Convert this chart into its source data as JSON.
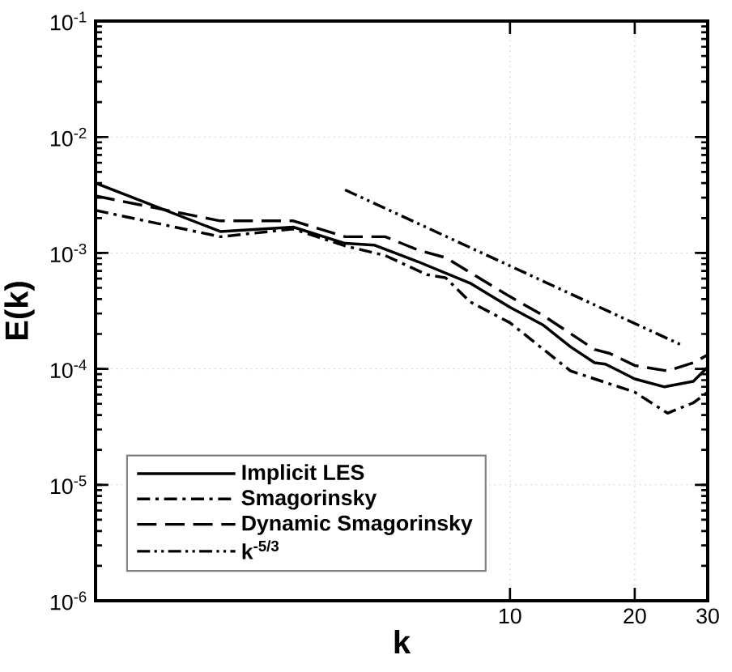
{
  "chart_data": {
    "type": "line",
    "xlabel": "k",
    "ylabel": "E(k)",
    "log": "xy",
    "grid": true,
    "legend": "bottom left",
    "xlim": [
      1,
      30
    ],
    "ylim": [
      1e-06,
      0.1
    ],
    "xticks": [
      10,
      20,
      30
    ],
    "yticks": [
      {
        "value": 1e-06,
        "label": "10$^{-6}$"
      },
      {
        "value": 1e-05,
        "label": "10$^{-5}$"
      },
      {
        "value": 0.0001,
        "label": "10$^{-4}$"
      },
      {
        "value": 0.001,
        "label": "10$^{-3}$"
      },
      {
        "value": 0.01,
        "label": "10$^{-2}$"
      },
      {
        "value": 0.1,
        "label": "10$^{-1}$"
      }
    ],
    "series": [
      {
        "name": "Implicit LES",
        "color": "#000000",
        "line_style": "solid",
        "x": [
          1,
          2,
          3,
          4,
          4.7,
          6,
          8,
          10,
          12,
          14,
          16,
          17,
          20,
          23.6,
          27.7,
          30
        ],
        "values": [
          0.004,
          0.00153,
          0.00167,
          0.00121,
          0.00117,
          0.00084,
          0.00055,
          0.00034,
          0.00024,
          0.000155,
          0.000113,
          0.00011,
          8.2e-05,
          7e-05,
          7.8e-05,
          0.000104
        ]
      },
      {
        "name": "Smagorinsky",
        "color": "#000000",
        "line_style": "dashdot",
        "x": [
          1,
          2,
          3,
          4,
          5,
          6.3,
          7,
          8,
          10,
          14,
          20,
          24,
          27.7,
          30
        ],
        "values": [
          0.00233,
          0.00138,
          0.00161,
          0.00115,
          0.00095,
          0.00065,
          0.00061,
          0.00038,
          0.00025,
          9.6e-05,
          6.3e-05,
          4.15e-05,
          5.1e-05,
          6.3e-05
        ]
      },
      {
        "name": "Dynamic Smagorinsky",
        "color": "#000000",
        "line_style": "dashed",
        "x": [
          1,
          2,
          3,
          4,
          5,
          6,
          7,
          8,
          10,
          12,
          16,
          17.4,
          20,
          24,
          27.7,
          30
        ],
        "values": [
          0.0031,
          0.00189,
          0.00189,
          0.00138,
          0.00138,
          0.00106,
          0.00091,
          0.00068,
          0.00042,
          0.00029,
          0.000147,
          0.000136,
          0.000107,
          9.6e-05,
          0.000113,
          0.000132
        ]
      },
      {
        "name": "k$^{-5/3}$",
        "color": "#000000",
        "line_style": "dashdotdot",
        "x": [
          4,
          26
        ],
        "values": [
          0.0035,
          0.00016
        ]
      }
    ]
  }
}
